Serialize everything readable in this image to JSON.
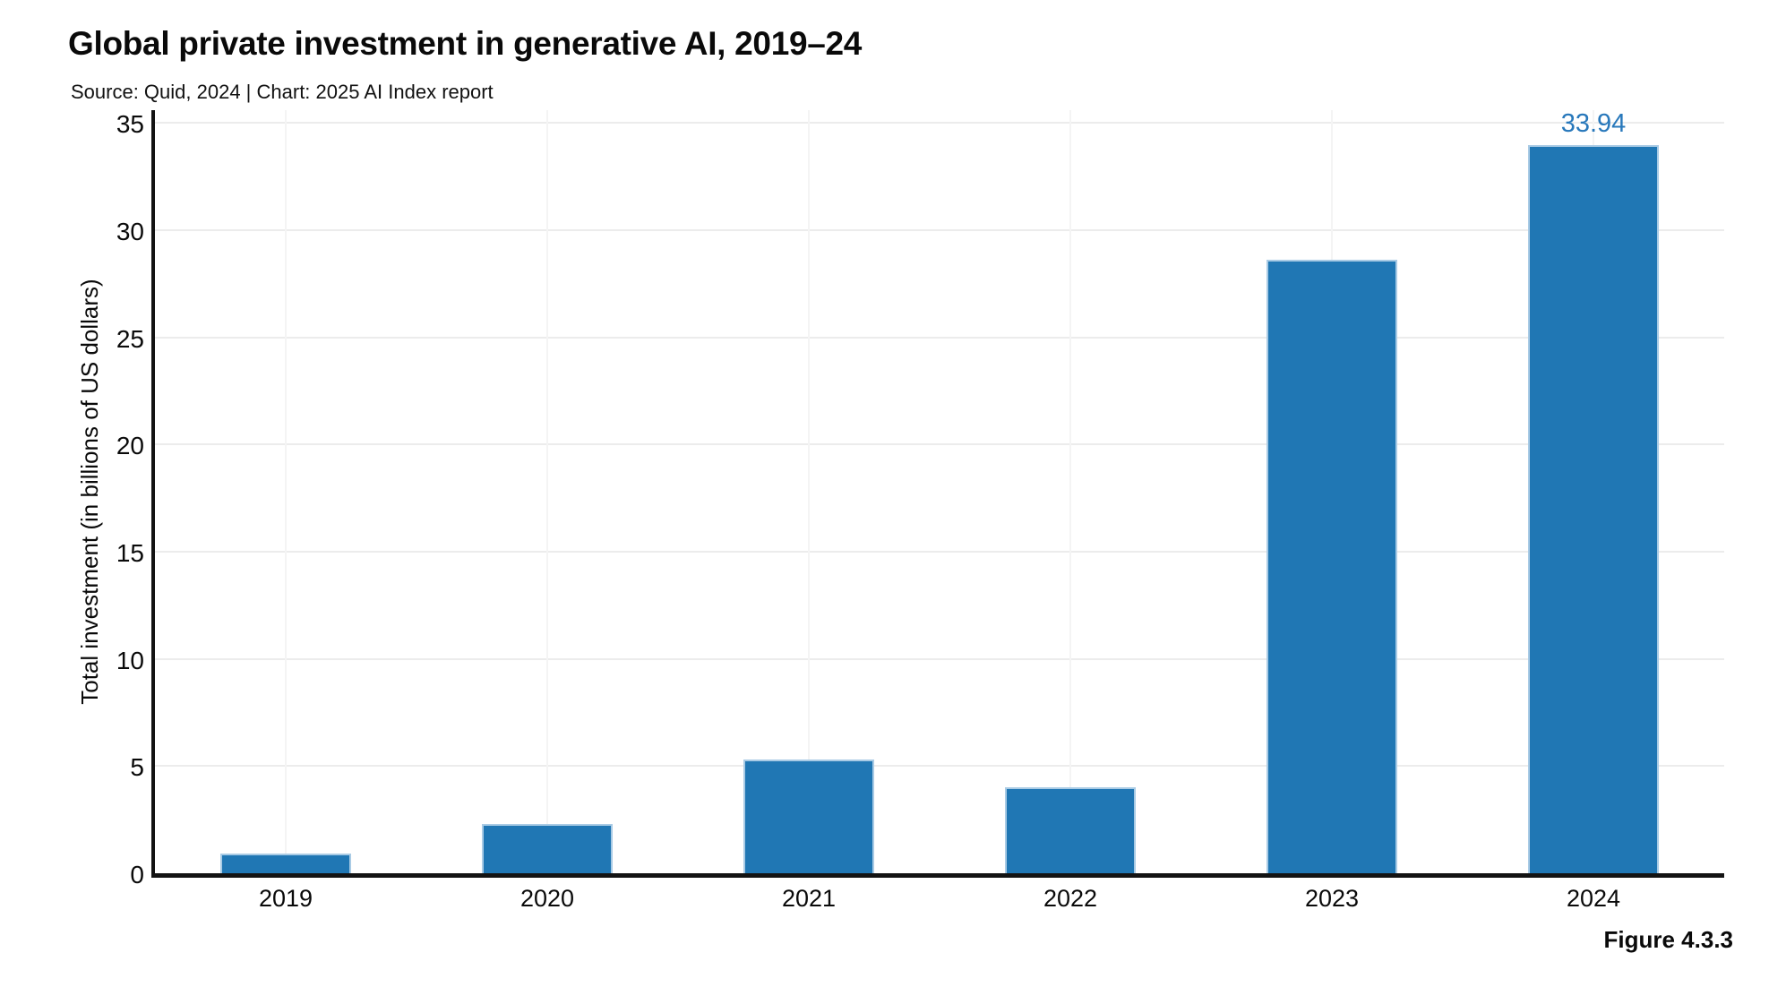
{
  "header": {
    "title": "Global private investment in generative AI, 2019–24",
    "subtitle": "Source: Quid, 2024 | Chart: 2025 AI Index report"
  },
  "figure_label": "Figure 4.3.3",
  "colors": {
    "bar": "#2077b4",
    "bar_edge": "#a9cbe5",
    "value_label": "#2878bb",
    "axis": "#131313",
    "grid_horizontal": "#ececec",
    "grid_vertical": "#f4f4f4",
    "text": "#0a0a0a"
  },
  "chart_data": {
    "type": "bar",
    "title": "Global private investment in generative AI, 2019–24",
    "subtitle": "Source: Quid, 2024 | Chart: 2025 AI Index report",
    "categories": [
      "2019",
      "2020",
      "2021",
      "2022",
      "2023",
      "2024"
    ],
    "values": [
      0.9,
      2.3,
      5.3,
      4.0,
      28.6,
      33.94
    ],
    "value_labels": [
      "",
      "",
      "",
      "",
      "",
      "33.94"
    ],
    "xlabel": "",
    "ylabel": "Total investment (in billions of US dollars)",
    "ylim": [
      0,
      35
    ],
    "yticks": [
      0,
      5,
      10,
      15,
      20,
      25,
      30,
      35
    ],
    "grid": true,
    "legend": false
  }
}
